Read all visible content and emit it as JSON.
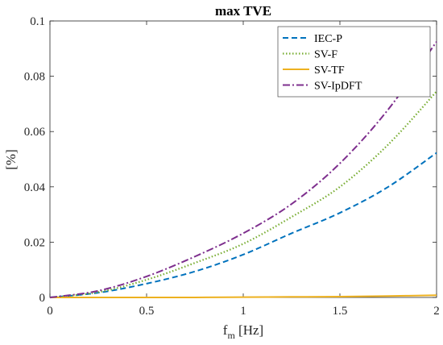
{
  "chart_data": {
    "type": "line",
    "title": "max TVE",
    "xlabel": {
      "main": "f",
      "sub": "m",
      "rest": " [Hz]"
    },
    "ylabel": "[%]",
    "xlim": [
      0,
      2
    ],
    "ylim": [
      0,
      0.1
    ],
    "xticks": [
      0,
      0.5,
      1,
      1.5,
      2
    ],
    "xtick_labels": [
      "0",
      "0.5",
      "1",
      "1.5",
      "2"
    ],
    "yticks": [
      0,
      0.02,
      0.04,
      0.06,
      0.08,
      0.1
    ],
    "ytick_labels": [
      "0",
      "0.02",
      "0.04",
      "0.06",
      "0.08",
      "0.1"
    ],
    "grid": false,
    "legend_position": "top-right",
    "x": [
      0,
      0.25,
      0.5,
      0.75,
      1.0,
      1.25,
      1.5,
      1.75,
      2.0
    ],
    "series": [
      {
        "name": "IEC-P",
        "style": "dashed",
        "color": "#0072BD",
        "values": [
          0,
          0.0017,
          0.005,
          0.0094,
          0.0155,
          0.0232,
          0.0306,
          0.04,
          0.0523
        ]
      },
      {
        "name": "SV-F",
        "style": "dotted",
        "color": "#77AC30",
        "values": [
          0,
          0.0019,
          0.0064,
          0.0125,
          0.0194,
          0.0291,
          0.04,
          0.0553,
          0.0745
        ]
      },
      {
        "name": "SV-TF",
        "style": "solid",
        "color": "#EDB120",
        "values": [
          0,
          0,
          0,
          0,
          0.0001,
          0.0002,
          0.0003,
          0.0005,
          0.0008
        ]
      },
      {
        "name": "SV-IpDFT",
        "style": "dashdot",
        "color": "#7E2F8E",
        "values": [
          0,
          0.0024,
          0.0076,
          0.0148,
          0.0232,
          0.0338,
          0.0485,
          0.068,
          0.0925
        ]
      }
    ]
  }
}
